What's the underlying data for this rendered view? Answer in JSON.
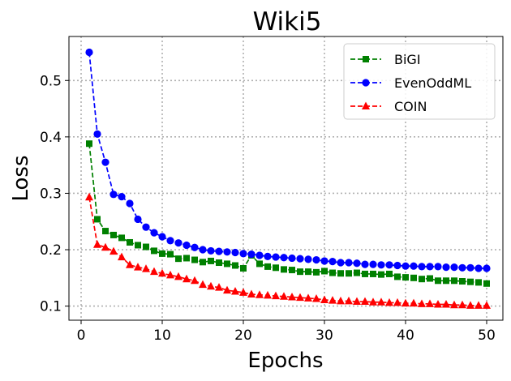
{
  "chart_data": {
    "type": "line",
    "title": "Wiki5",
    "xlabel": "Epochs",
    "ylabel": "Loss",
    "xlim": [
      -1.5,
      52.0
    ],
    "ylim": [
      0.075,
      0.578
    ],
    "xticks": [
      0,
      10,
      20,
      30,
      40,
      50
    ],
    "yticks": [
      0.1,
      0.2,
      0.3,
      0.4,
      0.5
    ],
    "grid": true,
    "legend_position": "top-right",
    "x": [
      1,
      2,
      3,
      4,
      5,
      6,
      7,
      8,
      9,
      10,
      11,
      12,
      13,
      14,
      15,
      16,
      17,
      18,
      19,
      20,
      21,
      22,
      23,
      24,
      25,
      26,
      27,
      28,
      29,
      30,
      31,
      32,
      33,
      34,
      35,
      36,
      37,
      38,
      39,
      40,
      41,
      42,
      43,
      44,
      45,
      46,
      47,
      48,
      49,
      50
    ],
    "series": [
      {
        "name": "BiGI",
        "color": "#008000",
        "marker": "square",
        "values": [
          0.388,
          0.254,
          0.233,
          0.226,
          0.221,
          0.213,
          0.208,
          0.205,
          0.198,
          0.193,
          0.192,
          0.184,
          0.185,
          0.182,
          0.178,
          0.18,
          0.177,
          0.175,
          0.172,
          0.167,
          0.19,
          0.175,
          0.17,
          0.168,
          0.165,
          0.164,
          0.161,
          0.161,
          0.16,
          0.162,
          0.159,
          0.158,
          0.158,
          0.159,
          0.157,
          0.157,
          0.156,
          0.157,
          0.152,
          0.151,
          0.15,
          0.148,
          0.149,
          0.145,
          0.145,
          0.145,
          0.144,
          0.143,
          0.142,
          0.14
        ]
      },
      {
        "name": "EvenOddML",
        "color": "#0000ff",
        "marker": "circle",
        "values": [
          0.55,
          0.405,
          0.355,
          0.298,
          0.294,
          0.282,
          0.254,
          0.24,
          0.23,
          0.223,
          0.216,
          0.212,
          0.208,
          0.204,
          0.2,
          0.198,
          0.197,
          0.196,
          0.195,
          0.193,
          0.192,
          0.19,
          0.188,
          0.187,
          0.186,
          0.185,
          0.184,
          0.183,
          0.182,
          0.18,
          0.179,
          0.177,
          0.177,
          0.176,
          0.174,
          0.174,
          0.173,
          0.173,
          0.172,
          0.171,
          0.171,
          0.17,
          0.17,
          0.17,
          0.169,
          0.169,
          0.168,
          0.168,
          0.167,
          0.167
        ]
      },
      {
        "name": "COIN",
        "color": "#ff0000",
        "marker": "triangle",
        "values": [
          0.293,
          0.209,
          0.204,
          0.197,
          0.187,
          0.173,
          0.169,
          0.166,
          0.161,
          0.158,
          0.155,
          0.152,
          0.148,
          0.145,
          0.138,
          0.135,
          0.133,
          0.128,
          0.126,
          0.124,
          0.121,
          0.12,
          0.119,
          0.118,
          0.117,
          0.116,
          0.115,
          0.114,
          0.113,
          0.111,
          0.11,
          0.109,
          0.109,
          0.108,
          0.108,
          0.107,
          0.107,
          0.106,
          0.106,
          0.105,
          0.105,
          0.104,
          0.104,
          0.103,
          0.103,
          0.102,
          0.102,
          0.101,
          0.101,
          0.101
        ]
      }
    ]
  }
}
